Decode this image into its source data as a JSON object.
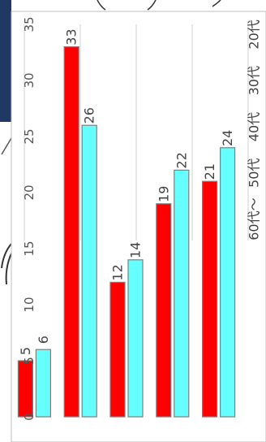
{
  "colors": {
    "panel_navy": "#1f3864",
    "series_a": "#ff0000",
    "series_b": "#66ffff",
    "gridline": "#d9d9d9",
    "bar_outline": "#7f7f7f"
  },
  "chart_data": {
    "type": "bar",
    "orientation": "horizontal bars, figure rotated 90° clockwise",
    "categories": [
      "20代",
      "30代",
      "40代",
      "50代",
      "60代～"
    ],
    "series": [
      {
        "values": [
          5,
          33,
          12,
          19,
          21
        ],
        "color": "#ff0000"
      },
      {
        "values": [
          6,
          26,
          14,
          22,
          24
        ],
        "color": "#66ffff"
      }
    ],
    "ylim": [
      0,
      35
    ],
    "ticks": [
      "0",
      "5",
      "10",
      "15",
      "20",
      "25",
      "30",
      "35"
    ],
    "grid": true,
    "data_labels": true,
    "legend": "none"
  }
}
